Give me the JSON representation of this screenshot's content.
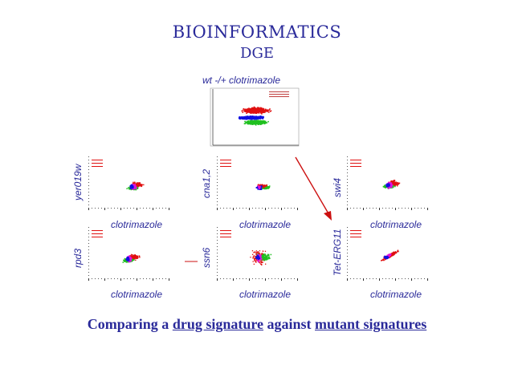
{
  "header": {
    "title": "BIOINFORMATICS",
    "subtitle": "DGE"
  },
  "main_plot": {
    "label": "wt -/+ clotrimazole"
  },
  "mutant_plots": [
    {
      "id": "yer019w",
      "ylabel": "yer019w",
      "xlabel": "clotrimazole"
    },
    {
      "id": "cna12",
      "ylabel": "cna1,2",
      "xlabel": "clotrimazole"
    },
    {
      "id": "swi4",
      "ylabel": "swi4",
      "xlabel": "clotrimazole"
    },
    {
      "id": "rpd3",
      "ylabel": "rpd3",
      "xlabel": "clotrimazole"
    },
    {
      "id": "ssn6",
      "ylabel": "ssn6",
      "xlabel": "clotrimazole"
    },
    {
      "id": "teterg11",
      "ylabel": "Tet-ERG11",
      "xlabel": "clotrimazole"
    }
  ],
  "caption": {
    "part1": "Comparing a ",
    "link1": "drug signature",
    "part2": " against ",
    "link2": "mutant signatures"
  },
  "colors": {
    "text": "#2a2a9a",
    "red": "#e01010",
    "green": "#20c020",
    "blue": "#1010e0",
    "magenta": "#e010e0",
    "arrow": "#cc1010"
  }
}
